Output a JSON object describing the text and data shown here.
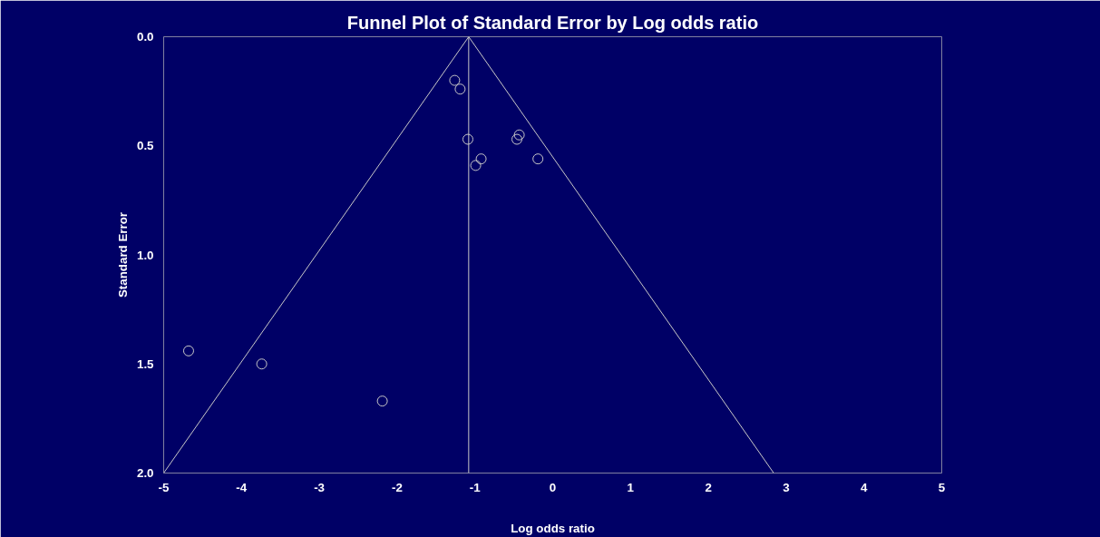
{
  "chart_data": {
    "type": "scatter",
    "title": "Funnel Plot of Standard Error by Log odds ratio",
    "xlabel": "Log odds ratio",
    "ylabel": "Standard Error",
    "xlim": [
      -5,
      5
    ],
    "xticks": [
      -5,
      -4,
      -3,
      -2,
      -1,
      0,
      1,
      2,
      3,
      4,
      5
    ],
    "ylim": [
      2,
      0
    ],
    "yticks": [
      {
        "value": 0,
        "label": "0.0"
      },
      {
        "value": 0.5,
        "label": "0.5"
      },
      {
        "value": 1,
        "label": "1.0"
      },
      {
        "value": 1.5,
        "label": "1.5"
      },
      {
        "value": 2,
        "label": "2.0"
      }
    ],
    "grid": false,
    "series": [
      {
        "marker": "circle",
        "color": "#c8c8c8",
        "x": [
          -4.68,
          -3.74,
          -2.19,
          -1.26,
          -1.19,
          -1.09,
          -0.99,
          -0.92,
          -0.46,
          -0.43,
          -0.19
        ],
        "values": [
          1.44,
          1.5,
          1.67,
          0.2,
          0.24,
          0.47,
          0.59,
          0.56,
          0.47,
          0.45,
          0.56
        ]
      },
      {
        "type": "line",
        "color": "#c8c8c8",
        "x": [
          -5,
          -1.08,
          2.84
        ],
        "values": [
          2,
          0,
          2
        ]
      }
    ],
    "ref_lines": [
      {
        "axis": "x",
        "value": -1.08,
        "color": "#c8c8c8"
      }
    ]
  }
}
